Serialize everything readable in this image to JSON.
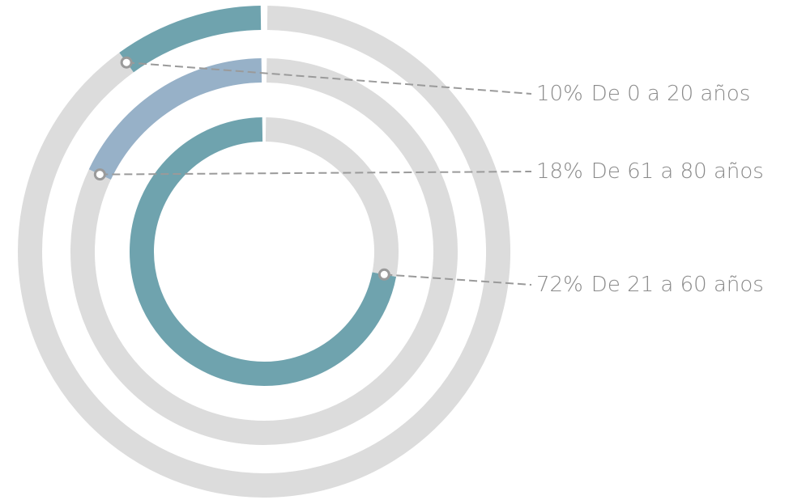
{
  "chart_data": {
    "type": "radial_bar",
    "categories": [
      "De 0 a 20 años",
      "De 61 a 80 años",
      "De 21 a 60 años"
    ],
    "values": [
      10,
      18,
      72
    ],
    "value_labels": [
      "10%",
      "18%",
      "72%"
    ],
    "colors": [
      "#6fa3ae",
      "#97b1c8",
      "#6fa3ae"
    ],
    "track_color": "#dcdcdc"
  }
}
